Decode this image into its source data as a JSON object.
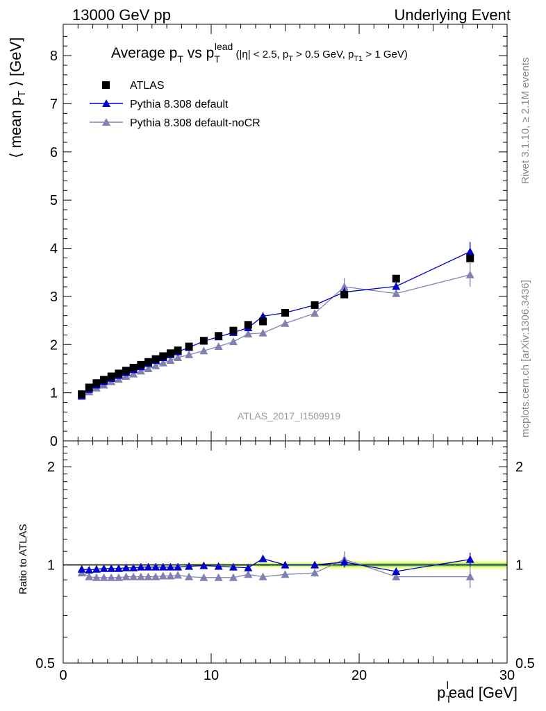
{
  "header": {
    "left": "13000 GeV pp",
    "right": "Underlying Event"
  },
  "side": {
    "rivet": "Rivet 3.1.10, ≥ 2.1M events",
    "mcplots": "mcplots.cern.ch [arXiv:1306.3436]"
  },
  "watermark": "ATLAS_2017_I1509919",
  "colors": {
    "atlas": "#000000",
    "default": "#0000cc",
    "noCR": "#8080b3",
    "band_yellow": "#ffff99",
    "band_green": "#99ee77"
  },
  "chart_data": [
    {
      "type": "scatter",
      "title": "Average pT vs pTlead (|η| < 2.5, pT > 0.5 GeV, pT1 > 1 GeV)",
      "xlabel": "plTead [GeV]",
      "ylabel": "⟨ mean pT ⟩ [GeV]",
      "xlim": [
        0,
        30
      ],
      "ylim": [
        0,
        8.65
      ],
      "yticks": [
        0,
        1,
        2,
        3,
        4,
        5,
        6,
        7,
        8
      ],
      "grid": false,
      "legend_position": "top-left",
      "series": [
        {
          "name": "ATLAS",
          "marker": "square",
          "x": [
            1.25,
            1.75,
            2.25,
            2.75,
            3.25,
            3.75,
            4.25,
            4.75,
            5.25,
            5.75,
            6.25,
            6.75,
            7.25,
            7.75,
            8.5,
            9.5,
            10.5,
            11.5,
            12.5,
            13.5,
            15,
            17,
            19,
            22.5,
            27.5
          ],
          "y": [
            0.97,
            1.11,
            1.2,
            1.27,
            1.34,
            1.4,
            1.46,
            1.52,
            1.58,
            1.64,
            1.7,
            1.76,
            1.82,
            1.88,
            1.96,
            2.08,
            2.18,
            2.29,
            2.41,
            2.48,
            2.66,
            2.82,
            3.04,
            3.37,
            3.79
          ],
          "yerr": []
        },
        {
          "name": "Pythia 8.308 default",
          "marker": "triangle",
          "line": true,
          "x": [
            1.25,
            1.75,
            2.25,
            2.75,
            3.25,
            3.75,
            4.25,
            4.75,
            5.25,
            5.75,
            6.25,
            6.75,
            7.25,
            7.75,
            8.5,
            9.5,
            10.5,
            11.5,
            12.5,
            13.5,
            15,
            17,
            19,
            22.5,
            27.5
          ],
          "y": [
            0.94,
            1.07,
            1.16,
            1.23,
            1.3,
            1.36,
            1.42,
            1.48,
            1.54,
            1.61,
            1.67,
            1.73,
            1.79,
            1.85,
            1.94,
            2.07,
            2.16,
            2.25,
            2.35,
            2.59,
            2.66,
            2.82,
            3.09,
            3.21,
            3.93
          ],
          "yerr": [
            0.01,
            0.01,
            0.01,
            0.01,
            0.01,
            0.01,
            0.01,
            0.01,
            0.01,
            0.01,
            0.01,
            0.01,
            0.01,
            0.01,
            0.02,
            0.02,
            0.03,
            0.03,
            0.04,
            0.07,
            0.05,
            0.07,
            0.1,
            0.08,
            0.2
          ]
        },
        {
          "name": "Pythia 8.308 default-noCR",
          "marker": "triangle",
          "line": true,
          "x": [
            1.25,
            1.75,
            2.25,
            2.75,
            3.25,
            3.75,
            4.25,
            4.75,
            5.25,
            5.75,
            6.25,
            6.75,
            7.25,
            7.75,
            8.5,
            9.5,
            10.5,
            11.5,
            12.5,
            13.5,
            15,
            17,
            19,
            22.5,
            27.5
          ],
          "y": [
            0.92,
            1.02,
            1.1,
            1.16,
            1.23,
            1.28,
            1.34,
            1.39,
            1.45,
            1.5,
            1.56,
            1.62,
            1.67,
            1.73,
            1.79,
            1.87,
            1.96,
            2.06,
            2.22,
            2.24,
            2.44,
            2.65,
            3.2,
            3.06,
            3.45
          ],
          "yerr": [
            0.01,
            0.01,
            0.01,
            0.01,
            0.01,
            0.01,
            0.01,
            0.01,
            0.01,
            0.01,
            0.01,
            0.01,
            0.01,
            0.01,
            0.02,
            0.02,
            0.03,
            0.03,
            0.04,
            0.05,
            0.05,
            0.07,
            0.18,
            0.08,
            0.25
          ]
        }
      ]
    },
    {
      "type": "scatter",
      "title": "",
      "xlabel": "plTead [GeV]",
      "ylabel": "Ratio to ATLAS",
      "xlim": [
        0,
        30
      ],
      "ylim": [
        0.5,
        2.4
      ],
      "yscale": "log",
      "xticks": [
        0,
        10,
        20,
        30
      ],
      "yticks": [
        0.5,
        1,
        2
      ],
      "grid": false,
      "series": [
        {
          "name": "Pythia 8.308 default",
          "marker": "triangle",
          "line": true,
          "x": [
            1.25,
            1.75,
            2.25,
            2.75,
            3.25,
            3.75,
            4.25,
            4.75,
            5.25,
            5.75,
            6.25,
            6.75,
            7.25,
            7.75,
            8.5,
            9.5,
            10.5,
            11.5,
            12.5,
            13.5,
            15,
            17,
            19,
            22.5,
            27.5
          ],
          "y": [
            0.97,
            0.965,
            0.97,
            0.975,
            0.975,
            0.975,
            0.98,
            0.98,
            0.985,
            0.985,
            0.985,
            0.985,
            0.985,
            0.985,
            0.99,
            0.995,
            0.99,
            0.985,
            0.98,
            1.045,
            1.0,
            1.0,
            1.02,
            0.955,
            1.04
          ],
          "yerr": [
            0.005,
            0.005,
            0.005,
            0.005,
            0.005,
            0.005,
            0.005,
            0.005,
            0.005,
            0.005,
            0.005,
            0.005,
            0.005,
            0.005,
            0.008,
            0.008,
            0.01,
            0.012,
            0.015,
            0.025,
            0.02,
            0.025,
            0.035,
            0.025,
            0.05
          ]
        },
        {
          "name": "Pythia 8.308 default-noCR",
          "marker": "triangle",
          "line": true,
          "x": [
            1.25,
            1.75,
            2.25,
            2.75,
            3.25,
            3.75,
            4.25,
            4.75,
            5.25,
            5.75,
            6.25,
            6.75,
            7.25,
            7.75,
            8.5,
            9.5,
            10.5,
            11.5,
            12.5,
            13.5,
            15,
            17,
            19,
            22.5,
            27.5
          ],
          "y": [
            0.945,
            0.92,
            0.915,
            0.915,
            0.915,
            0.915,
            0.92,
            0.92,
            0.92,
            0.92,
            0.92,
            0.925,
            0.925,
            0.93,
            0.92,
            0.915,
            0.915,
            0.915,
            0.935,
            0.92,
            0.935,
            0.945,
            1.04,
            0.92,
            0.92
          ],
          "yerr": [
            0.005,
            0.005,
            0.005,
            0.005,
            0.005,
            0.005,
            0.005,
            0.005,
            0.005,
            0.005,
            0.005,
            0.005,
            0.005,
            0.005,
            0.008,
            0.008,
            0.01,
            0.012,
            0.015,
            0.02,
            0.02,
            0.025,
            0.06,
            0.025,
            0.07
          ]
        }
      ]
    }
  ]
}
